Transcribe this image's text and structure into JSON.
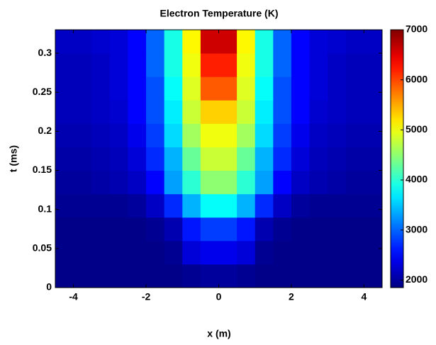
{
  "chart_data": {
    "type": "heatmap",
    "title": "Electron Temperature (K)",
    "x_label": "x (m)",
    "y_label": "t (ms)",
    "x_bins": [
      -4.5,
      -4,
      -3.5,
      -3,
      -2.5,
      -2,
      -1.5,
      -1,
      -0.5,
      0,
      0.5,
      1,
      1.5,
      2,
      2.5,
      3,
      3.5,
      4,
      4.5
    ],
    "y_bins": [
      0,
      0.03,
      0.06,
      0.09,
      0.12,
      0.15,
      0.18,
      0.21,
      0.24,
      0.27,
      0.3,
      0.33
    ],
    "z": [
      [
        1900,
        1900,
        1900,
        1900,
        1900,
        1900,
        1900,
        1950,
        2000,
        2000,
        1950,
        1900,
        1900,
        1900,
        1900,
        1900,
        1900,
        1900
      ],
      [
        1900,
        1900,
        1900,
        1900,
        1900,
        1900,
        1950,
        2300,
        2400,
        2400,
        2300,
        1950,
        1900,
        1900,
        1900,
        1900,
        1900,
        1900
      ],
      [
        1900,
        1900,
        1900,
        1900,
        1900,
        1950,
        2100,
        2600,
        2800,
        2800,
        2600,
        2100,
        1950,
        1900,
        1900,
        1900,
        1900,
        1900
      ],
      [
        1950,
        1950,
        1950,
        1950,
        2000,
        2200,
        2700,
        3400,
        3800,
        3800,
        3400,
        2700,
        2200,
        2000,
        1950,
        1950,
        1950,
        1950
      ],
      [
        2000,
        2000,
        2050,
        2100,
        2200,
        2500,
        3300,
        4000,
        4500,
        4500,
        4000,
        3300,
        2500,
        2200,
        2100,
        2050,
        2000,
        2000
      ],
      [
        2050,
        2050,
        2100,
        2150,
        2300,
        2700,
        3400,
        4300,
        4800,
        4800,
        4300,
        3400,
        2700,
        2300,
        2150,
        2100,
        2050,
        2050
      ],
      [
        2100,
        2100,
        2150,
        2200,
        2400,
        2800,
        3600,
        4600,
        5000,
        5000,
        4600,
        3600,
        2800,
        2400,
        2200,
        2150,
        2100,
        2100
      ],
      [
        2150,
        2150,
        2200,
        2250,
        2500,
        2900,
        3700,
        4800,
        5300,
        5300,
        4800,
        3700,
        2900,
        2500,
        2250,
        2200,
        2150,
        2150
      ],
      [
        2150,
        2150,
        2200,
        2300,
        2500,
        2900,
        3800,
        4900,
        5900,
        5900,
        4900,
        3800,
        2900,
        2500,
        2300,
        2200,
        2150,
        2150
      ],
      [
        2150,
        2150,
        2200,
        2300,
        2500,
        3000,
        3900,
        5000,
        6200,
        6200,
        5000,
        3900,
        3000,
        2500,
        2300,
        2200,
        2150,
        2150
      ],
      [
        2200,
        2200,
        2250,
        2300,
        2500,
        3000,
        3900,
        5100,
        6600,
        6600,
        5100,
        3900,
        3000,
        2500,
        2300,
        2250,
        2200,
        2200
      ]
    ],
    "colormap": "jet",
    "xlim": [
      -4.5,
      4.5
    ],
    "ylim": [
      0,
      0.33
    ],
    "xticks": [
      -4,
      -2,
      0,
      2,
      4
    ],
    "yticks": [
      0,
      0.05,
      0.1,
      0.15,
      0.2,
      0.25,
      0.3
    ],
    "clim": [
      1850,
      7000
    ],
    "cticks": [
      2000,
      3000,
      4000,
      5000,
      6000,
      7000
    ]
  }
}
